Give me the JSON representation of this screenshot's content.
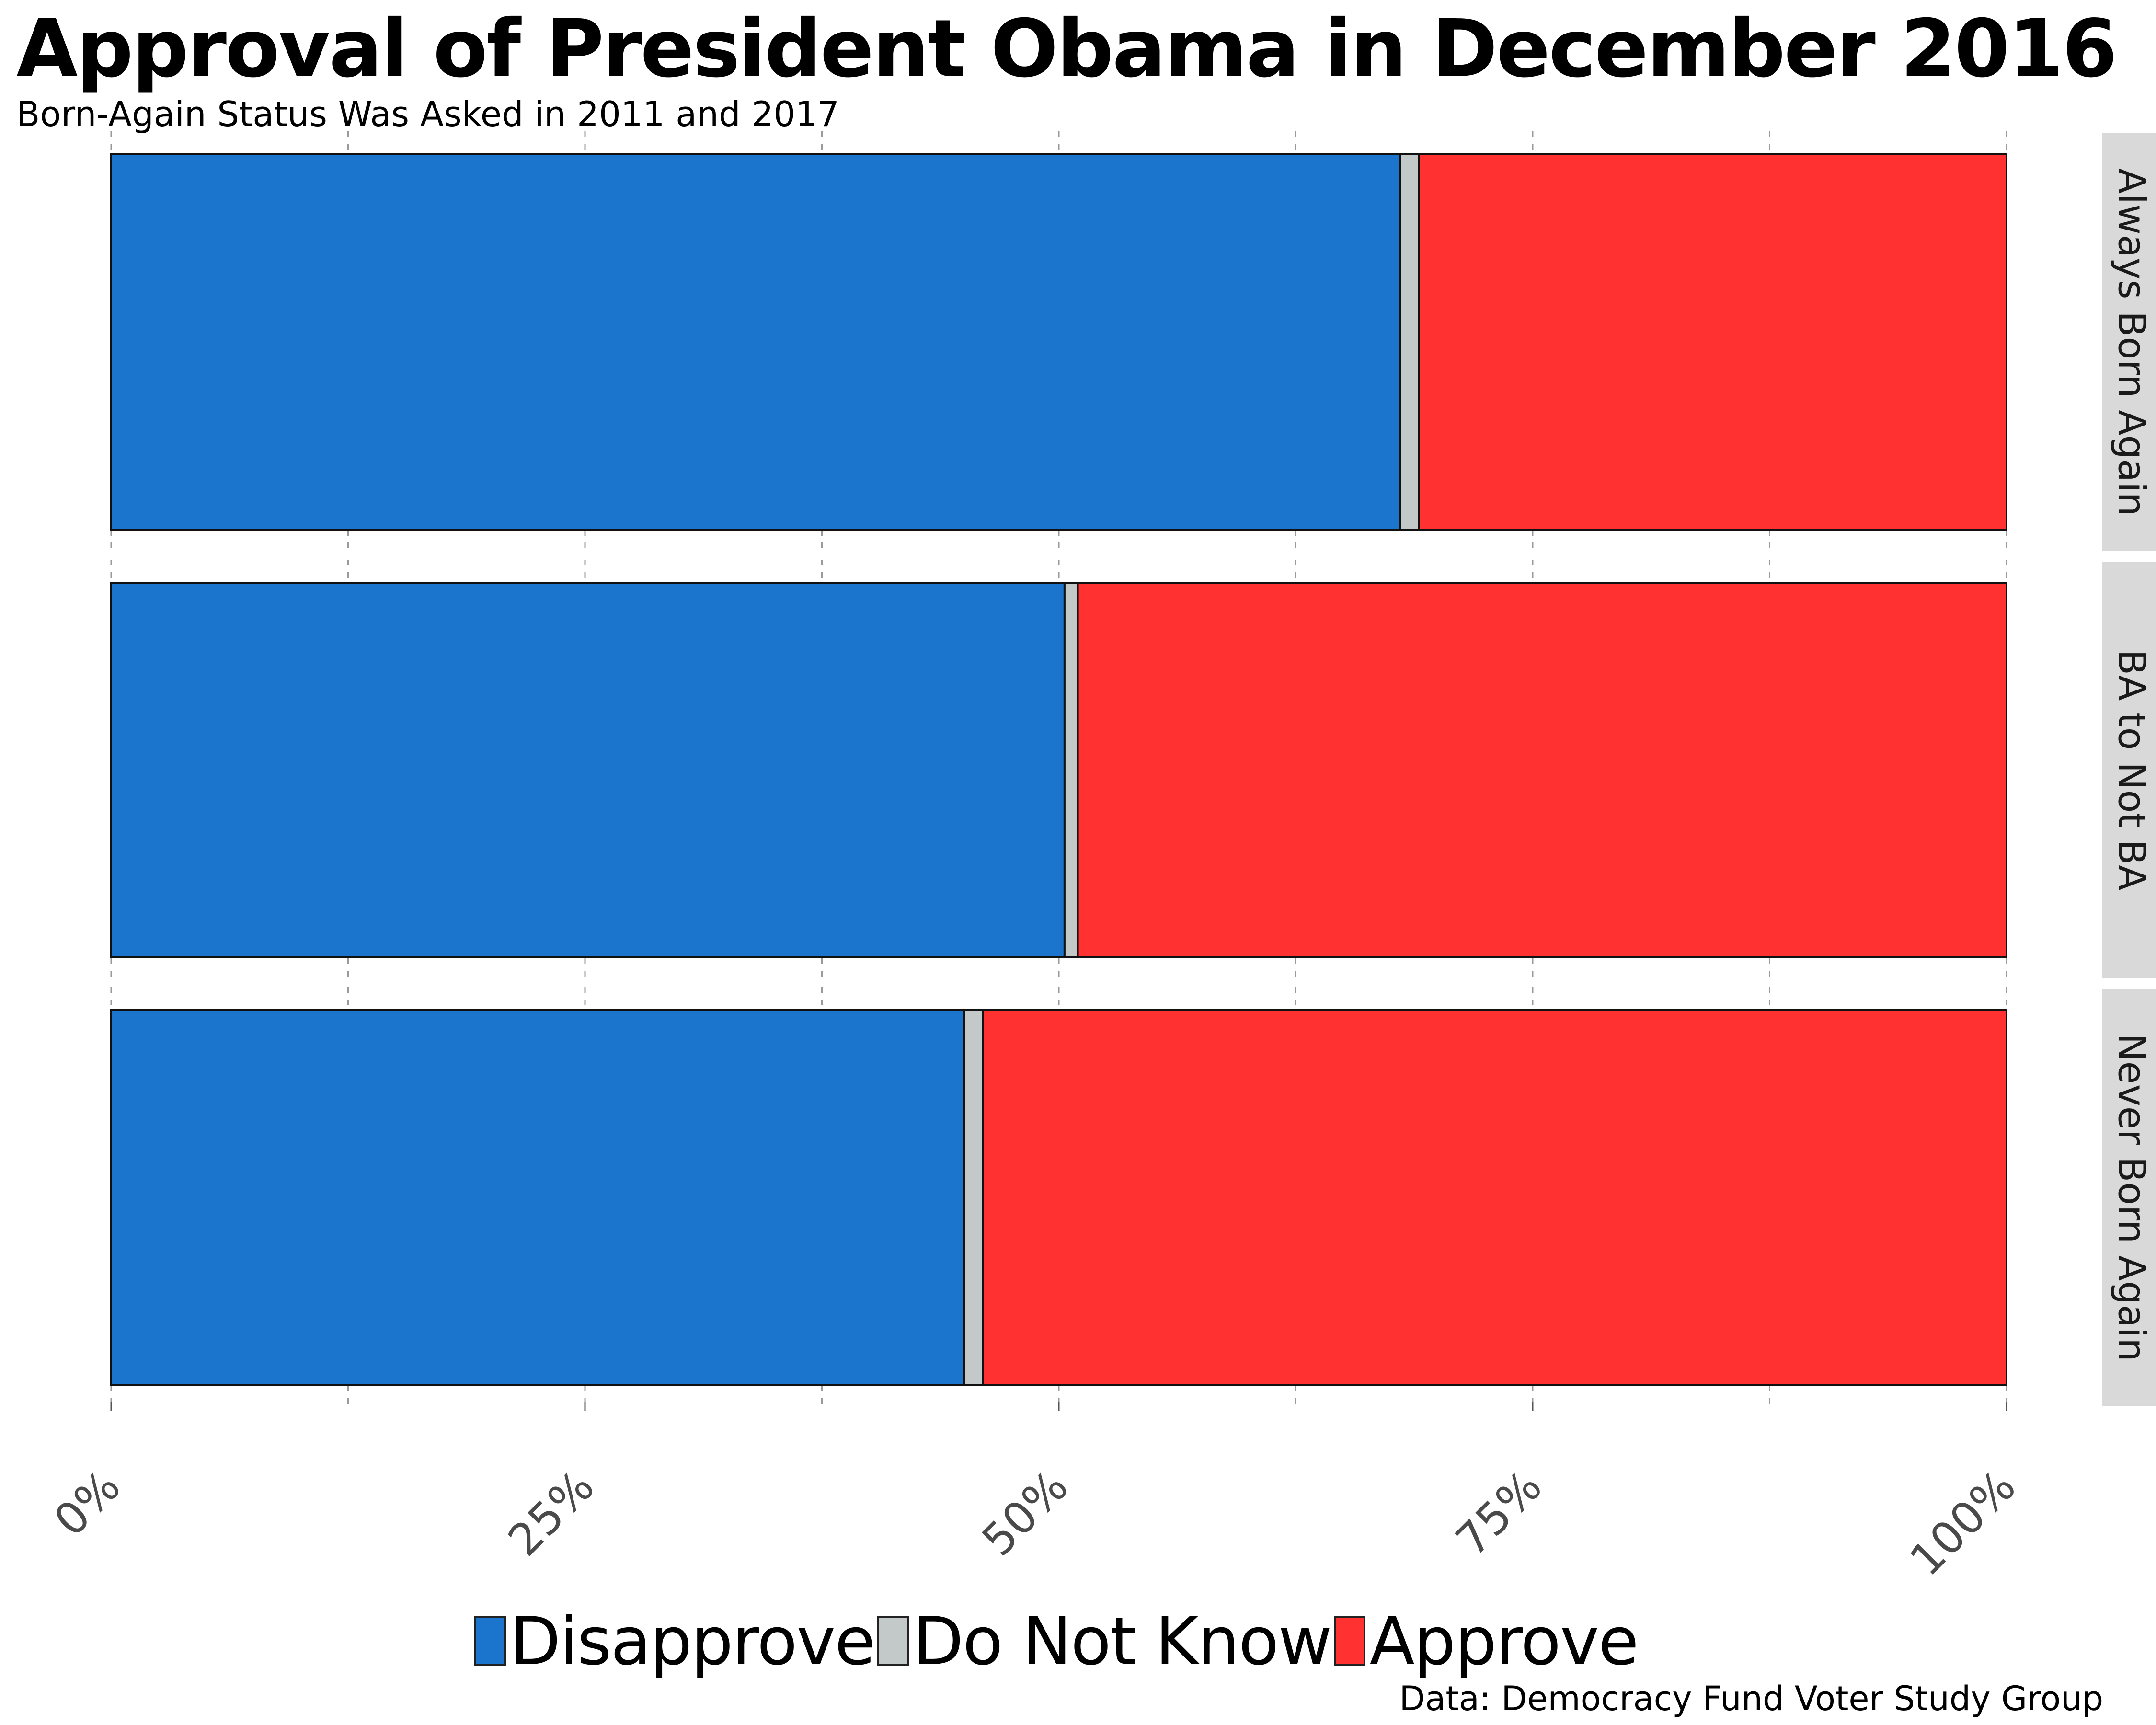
{
  "title": "Approval of President Obama in December 2016",
  "subtitle": "Born-Again Status Was Asked in 2011 and 2017",
  "caption": "Data: Democracy Fund Voter Study Group",
  "colors": {
    "Disapprove": "#1b75cd",
    "Do Not Know": "#c3c9c8",
    "Approve": "#ff3131",
    "panel_strip": "#d9d9d9"
  },
  "legend": [
    {
      "label": "Disapprove",
      "color": "#1b75cd"
    },
    {
      "label": "Do Not Know",
      "color": "#c3c9c8"
    },
    {
      "label": "Approve",
      "color": "#ff3131"
    }
  ],
  "chart_data": {
    "type": "bar",
    "orientation": "horizontal",
    "stacked": "percent",
    "title": "Approval of President Obama in December 2016",
    "subtitle": "Born-Again Status Was Asked in 2011 and 2017",
    "categories": [
      "Always Born Again",
      "BA to Not BA",
      "Never Born Again"
    ],
    "series": [
      {
        "name": "Disapprove",
        "values": [
          68.0,
          50.3,
          45.0
        ]
      },
      {
        "name": "Do Not Know",
        "values": [
          1.0,
          0.7,
          1.0
        ]
      },
      {
        "name": "Approve",
        "values": [
          31.0,
          49.0,
          54.0
        ]
      }
    ],
    "xlim": [
      0,
      100
    ],
    "x_ticks": [
      "0%",
      "25%",
      "50%",
      "75%",
      "100%"
    ],
    "x_tick_values": [
      0,
      25,
      50,
      75,
      100
    ],
    "x_minor_gridlines": [
      12.5,
      37.5,
      62.5,
      87.5
    ],
    "grid": true,
    "legend_position": "bottom",
    "facet_strips": "right",
    "caption": "Data: Democracy Fund Voter Study Group"
  }
}
